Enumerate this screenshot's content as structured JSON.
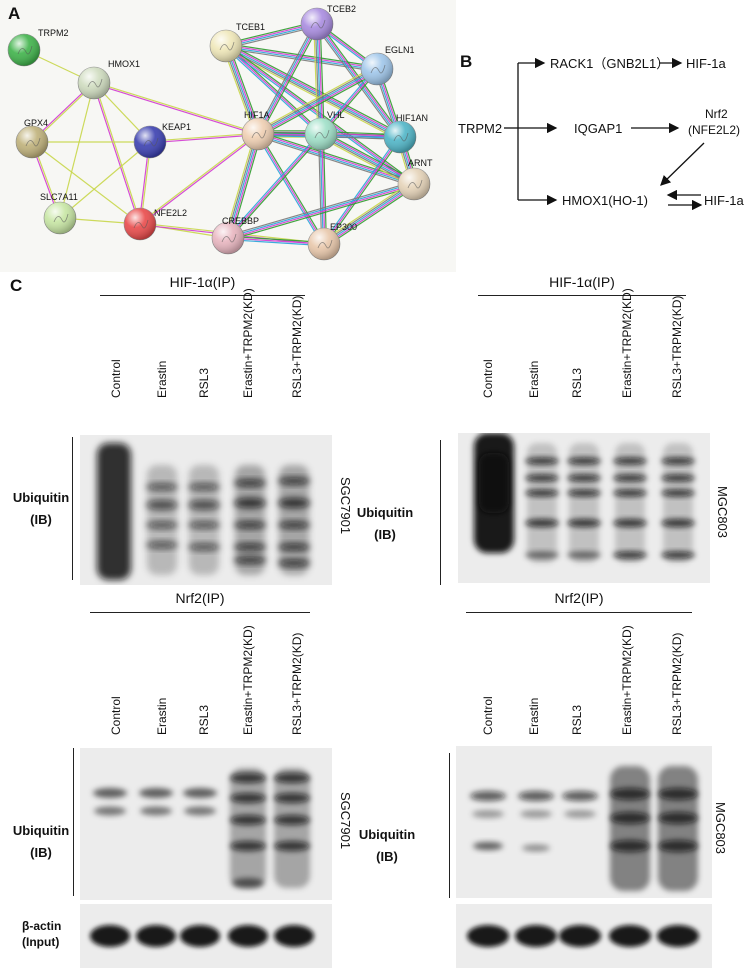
{
  "panel_labels": {
    "a": "A",
    "b": "B",
    "c": "C"
  },
  "network": {
    "nodes": [
      {
        "id": "TRPM2",
        "label": "TRPM2",
        "color": "#3fb34a"
      },
      {
        "id": "HMOX1",
        "label": "HMOX1",
        "color": "#cfdcbf"
      },
      {
        "id": "GPX4",
        "label": "GPX4",
        "color": "#bfb17a"
      },
      {
        "id": "KEAP1",
        "label": "KEAP1",
        "color": "#3a3fb0"
      },
      {
        "id": "SLC7A11",
        "label": "SLC7A11",
        "color": "#c7e6a3"
      },
      {
        "id": "NFE2L2",
        "label": "NFE2L2",
        "color": "#e94a4a"
      },
      {
        "id": "TCEB1",
        "label": "TCEB1",
        "color": "#efe7b8"
      },
      {
        "id": "TCEB2",
        "label": "TCEB2",
        "color": "#a98ce0"
      },
      {
        "id": "EGLN1",
        "label": "EGLN1",
        "color": "#9fc6ea"
      },
      {
        "id": "HIF1A",
        "label": "HIF1A",
        "color": "#efcfb2"
      },
      {
        "id": "VHL",
        "label": "VHL",
        "color": "#9fe0c8"
      },
      {
        "id": "HIF1AN",
        "label": "HIF1AN",
        "color": "#4fb5c7"
      },
      {
        "id": "ARNT",
        "label": "ARNT",
        "color": "#e5d3b8"
      },
      {
        "id": "CREBBP",
        "label": "CREBBP",
        "color": "#e8b5bf"
      },
      {
        "id": "EP300",
        "label": "EP300",
        "color": "#e8c7aa"
      }
    ],
    "edges": [
      [
        "TRPM2",
        "HMOX1"
      ],
      [
        "HMOX1",
        "GPX4"
      ],
      [
        "HMOX1",
        "KEAP1"
      ],
      [
        "HMOX1",
        "NFE2L2"
      ],
      [
        "HMOX1",
        "SLC7A11"
      ],
      [
        "HMOX1",
        "HIF1A"
      ],
      [
        "GPX4",
        "KEAP1"
      ],
      [
        "GPX4",
        "SLC7A11"
      ],
      [
        "GPX4",
        "NFE2L2"
      ],
      [
        "KEAP1",
        "NFE2L2"
      ],
      [
        "KEAP1",
        "SLC7A11"
      ],
      [
        "KEAP1",
        "HIF1A"
      ],
      [
        "SLC7A11",
        "NFE2L2"
      ],
      [
        "NFE2L2",
        "HIF1A"
      ],
      [
        "NFE2L2",
        "CREBBP"
      ],
      [
        "NFE2L2",
        "EP300"
      ],
      [
        "TCEB1",
        "TCEB2"
      ],
      [
        "TCEB1",
        "HIF1A"
      ],
      [
        "TCEB1",
        "VHL"
      ],
      [
        "TCEB1",
        "EGLN1"
      ],
      [
        "TCEB1",
        "HIF1AN"
      ],
      [
        "TCEB1",
        "ARNT"
      ],
      [
        "TCEB2",
        "HIF1A"
      ],
      [
        "TCEB2",
        "VHL"
      ],
      [
        "TCEB2",
        "EGLN1"
      ],
      [
        "TCEB2",
        "HIF1AN"
      ],
      [
        "EGLN1",
        "HIF1A"
      ],
      [
        "EGLN1",
        "VHL"
      ],
      [
        "EGLN1",
        "HIF1AN"
      ],
      [
        "HIF1A",
        "VHL"
      ],
      [
        "HIF1A",
        "HIF1AN"
      ],
      [
        "HIF1A",
        "ARNT"
      ],
      [
        "HIF1A",
        "CREBBP"
      ],
      [
        "HIF1A",
        "EP300"
      ],
      [
        "VHL",
        "HIF1AN"
      ],
      [
        "VHL",
        "ARNT"
      ],
      [
        "VHL",
        "CREBBP"
      ],
      [
        "VHL",
        "EP300"
      ],
      [
        "HIF1AN",
        "ARNT"
      ],
      [
        "HIF1AN",
        "EP300"
      ],
      [
        "ARNT",
        "CREBBP"
      ],
      [
        "ARNT",
        "EP300"
      ],
      [
        "CREBBP",
        "EP300"
      ]
    ]
  },
  "pathway": {
    "source": "TRPM2",
    "rack1": "RACK1（GNB2L1）",
    "hif_top": "HIF-1a",
    "iqgap1": "IQGAP1",
    "nrf2_line1": "Nrf2",
    "nrf2_line2": "(NFE2L2)",
    "hmox1": "HMOX1(HO-1)",
    "hif_bottom": "HIF-1a"
  },
  "blots": {
    "lanes": [
      "Control",
      "Erastin",
      "RSL3",
      "Erastin+TRPM2(KD)",
      "RSL3+TRPM2(KD)"
    ],
    "ip_hif": "HIF-1α(IP)",
    "ip_nrf2": "Nrf2(IP)",
    "ib_line1": "Ubiquitin",
    "ib_line2": "(IB)",
    "cell_left": "SGC7901",
    "cell_right": "MGC803",
    "actin_line1": "β-actin",
    "actin_line2": "(Input)"
  }
}
